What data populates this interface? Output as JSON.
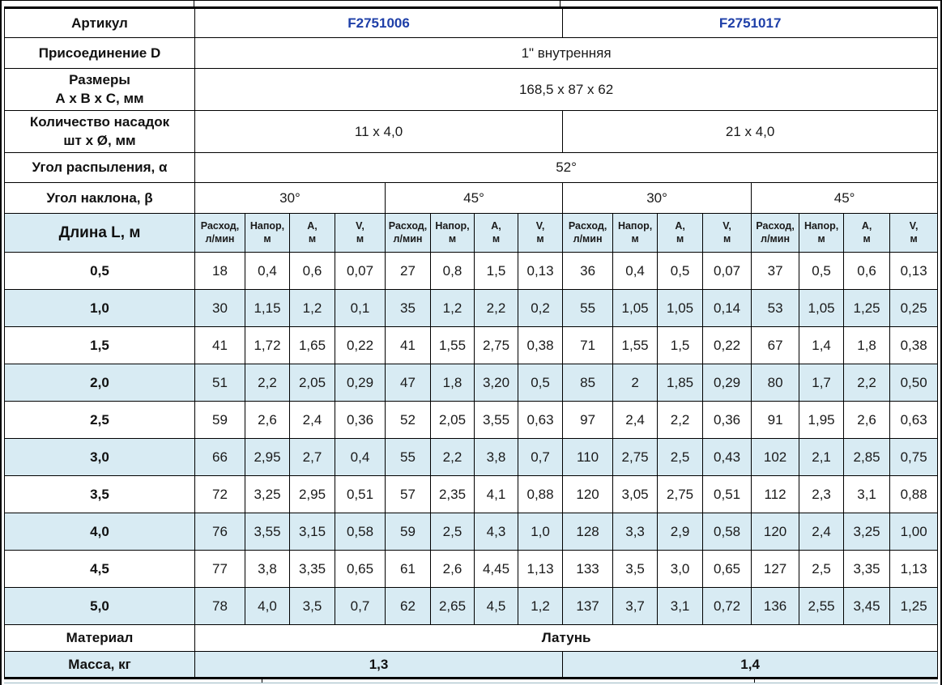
{
  "colors": {
    "accent_blue_text": "#1e3fa8",
    "row_highlight": "#d8ebf3",
    "border": "#000000"
  },
  "specs": {
    "article": {
      "label": "Артикул",
      "values": [
        "F2751006",
        "F2751017"
      ]
    },
    "connection": {
      "label": "Присоединение D",
      "value": "1\" внутренняя"
    },
    "dimensions": {
      "label_line1": "Размеры",
      "label_line2": "А х В х С, мм",
      "value": "168,5 х 87 х 62"
    },
    "nozzles": {
      "label_line1": "Количество насадок",
      "label_line2": "шт х Ø, мм",
      "values": [
        "11 х 4,0",
        "21 х 4,0"
      ]
    },
    "spray_angle": {
      "label": "Угол распыления, α",
      "value": "52°"
    },
    "tilt_angle": {
      "label": "Угол наклона, β",
      "values": [
        "30°",
        "45°",
        "30°",
        "45°"
      ]
    }
  },
  "flow_table": {
    "length_header": "Длина L, м",
    "groups": 4,
    "measure_headers": [
      {
        "line1": "Расход,",
        "line2": "л/мин"
      },
      {
        "line1": "Напор,",
        "line2": "м"
      },
      {
        "line1": "А,",
        "line2": "м"
      },
      {
        "line1": "V,",
        "line2": "м"
      }
    ],
    "rows": [
      {
        "length": "0,5",
        "values": [
          "18",
          "0,4",
          "0,6",
          "0,07",
          "27",
          "0,8",
          "1,5",
          "0,13",
          "36",
          "0,4",
          "0,5",
          "0,07",
          "37",
          "0,5",
          "0,6",
          "0,13"
        ]
      },
      {
        "length": "1,0",
        "values": [
          "30",
          "1,15",
          "1,2",
          "0,1",
          "35",
          "1,2",
          "2,2",
          "0,2",
          "55",
          "1,05",
          "1,05",
          "0,14",
          "53",
          "1,05",
          "1,25",
          "0,25"
        ]
      },
      {
        "length": "1,5",
        "values": [
          "41",
          "1,72",
          "1,65",
          "0,22",
          "41",
          "1,55",
          "2,75",
          "0,38",
          "71",
          "1,55",
          "1,5",
          "0,22",
          "67",
          "1,4",
          "1,8",
          "0,38"
        ]
      },
      {
        "length": "2,0",
        "values": [
          "51",
          "2,2",
          "2,05",
          "0,29",
          "47",
          "1,8",
          "3,20",
          "0,5",
          "85",
          "2",
          "1,85",
          "0,29",
          "80",
          "1,7",
          "2,2",
          "0,50"
        ]
      },
      {
        "length": "2,5",
        "values": [
          "59",
          "2,6",
          "2,4",
          "0,36",
          "52",
          "2,05",
          "3,55",
          "0,63",
          "97",
          "2,4",
          "2,2",
          "0,36",
          "91",
          "1,95",
          "2,6",
          "0,63"
        ]
      },
      {
        "length": "3,0",
        "values": [
          "66",
          "2,95",
          "2,7",
          "0,4",
          "55",
          "2,2",
          "3,8",
          "0,7",
          "110",
          "2,75",
          "2,5",
          "0,43",
          "102",
          "2,1",
          "2,85",
          "0,75"
        ]
      },
      {
        "length": "3,5",
        "values": [
          "72",
          "3,25",
          "2,95",
          "0,51",
          "57",
          "2,35",
          "4,1",
          "0,88",
          "120",
          "3,05",
          "2,75",
          "0,51",
          "112",
          "2,3",
          "3,1",
          "0,88"
        ]
      },
      {
        "length": "4,0",
        "values": [
          "76",
          "3,55",
          "3,15",
          "0,58",
          "59",
          "2,5",
          "4,3",
          "1,0",
          "128",
          "3,3",
          "2,9",
          "0,58",
          "120",
          "2,4",
          "3,25",
          "1,00"
        ]
      },
      {
        "length": "4,5",
        "values": [
          "77",
          "3,8",
          "3,35",
          "0,65",
          "61",
          "2,6",
          "4,45",
          "1,13",
          "133",
          "3,5",
          "3,0",
          "0,65",
          "127",
          "2,5",
          "3,35",
          "1,13"
        ]
      },
      {
        "length": "5,0",
        "values": [
          "78",
          "4,0",
          "3,5",
          "0,7",
          "62",
          "2,65",
          "4,5",
          "1,2",
          "137",
          "3,7",
          "3,1",
          "0,72",
          "136",
          "2,55",
          "3,45",
          "1,25"
        ]
      }
    ]
  },
  "material": {
    "label": "Материал",
    "value": "Латунь"
  },
  "mass": {
    "label": "Масса, кг",
    "values": [
      "1,3",
      "1,4"
    ]
  }
}
